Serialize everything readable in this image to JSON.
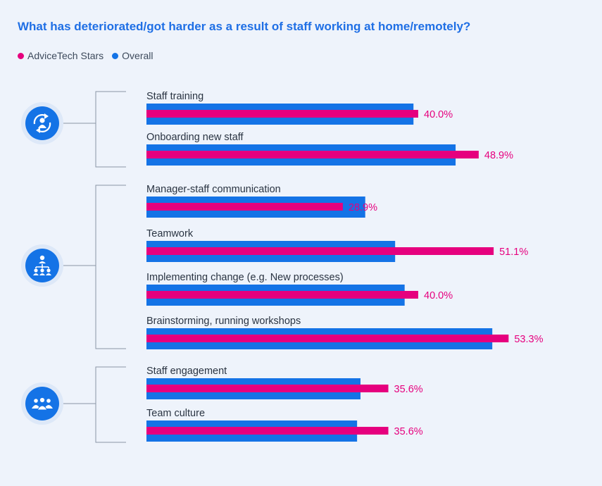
{
  "chart_data": {
    "type": "bar",
    "title": "What has deteriorated/got harder as a result of staff working at home/remotely?",
    "xlabel": "",
    "ylabel": "",
    "xlim": [
      0,
      100
    ],
    "value_suffix": "%",
    "series": [
      {
        "name": "AdviceTech Stars",
        "color": "#e6007e",
        "values": [
          40.0,
          48.9,
          28.9,
          51.1,
          40.0,
          53.3,
          35.6,
          35.6
        ],
        "labels": [
          "40.0%",
          "48.9%",
          "28.9%",
          "51.1%",
          "40.0%",
          "53.3%",
          "35.6%",
          "35.6%"
        ]
      },
      {
        "name": "Overall",
        "color": "#1473e6",
        "values": [
          39.3,
          45.5,
          32.2,
          36.6,
          38.0,
          50.9,
          31.5,
          31.0
        ]
      }
    ],
    "categories": [
      "Staff training",
      "Onboarding new staff",
      "Manager-staff communication",
      "Teamwork",
      "Implementing change (e.g. New processes)",
      "Brainstorming, running workshops",
      "Staff engagement",
      "Team culture"
    ],
    "groups": [
      {
        "icon": "refresh-person-icon",
        "items": [
          0,
          1
        ]
      },
      {
        "icon": "org-chart-icon",
        "items": [
          2,
          3,
          4,
          5
        ]
      },
      {
        "icon": "group-people-icon",
        "items": [
          6,
          7
        ]
      }
    ]
  },
  "colors": {
    "background": "#eef3fb",
    "title": "#1f6fe5",
    "bracket": "#8a96a6",
    "label": "#2a3442",
    "icon": "#1473e6",
    "icon_halo": "#dde8f8"
  }
}
